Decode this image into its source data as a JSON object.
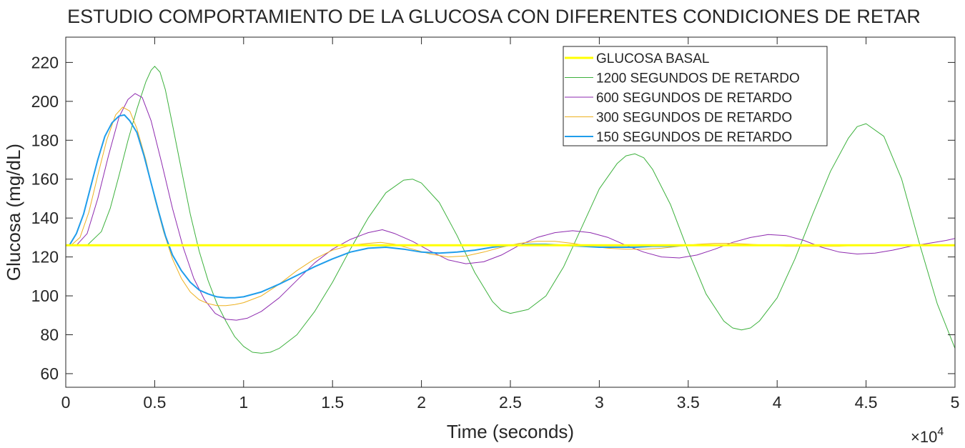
{
  "chart_data": {
    "type": "line",
    "title": "ESTUDIO COMPORTAMIENTO DE LA GLUCOSA CON DIFERENTES CONDICIONES DE RETAR",
    "xlabel": "Time (seconds)",
    "ylabel": "Glucosa (mg/dL)",
    "x_exponent_label": "×10",
    "x_exponent_power": "4",
    "xlim": [
      0,
      50000
    ],
    "ylim": [
      53,
      233
    ],
    "xticks": [
      0,
      5000,
      10000,
      15000,
      20000,
      25000,
      30000,
      35000,
      40000,
      45000,
      50000
    ],
    "xtick_labels": [
      "0",
      "0.5",
      "1",
      "1.5",
      "2",
      "2.5",
      "3",
      "3.5",
      "4",
      "4.5",
      "5"
    ],
    "yticks": [
      60,
      80,
      100,
      120,
      140,
      160,
      180,
      200,
      220
    ],
    "ytick_labels": [
      "60",
      "80",
      "100",
      "120",
      "140",
      "160",
      "180",
      "200",
      "220"
    ],
    "grid": false,
    "legend_position": "top-right",
    "series": [
      {
        "name": "GLUCOSA BASAL",
        "color": "#FFFF00",
        "line_width": "thick",
        "x": [
          0,
          50000
        ],
        "y": [
          126,
          126
        ]
      },
      {
        "name": "1200 SEGUNDOS DE RETARDO",
        "color": "#3CB13C",
        "line_width": "thin",
        "x": [
          0,
          1200,
          2000,
          2500,
          3000,
          3500,
          4000,
          4500,
          4800,
          5000,
          5300,
          5600,
          6000,
          6500,
          7000,
          7500,
          8000,
          8500,
          9000,
          9500,
          10000,
          10500,
          11000,
          11500,
          12000,
          13000,
          14000,
          15000,
          16000,
          17000,
          18000,
          19000,
          19500,
          20000,
          21000,
          22000,
          23000,
          24000,
          24500,
          25000,
          26000,
          27000,
          28000,
          29000,
          30000,
          31000,
          31500,
          32000,
          32500,
          33000,
          34000,
          35000,
          36000,
          37000,
          37500,
          38000,
          38500,
          39000,
          40000,
          41000,
          42000,
          43000,
          44000,
          44500,
          45000,
          46000,
          47000,
          48000,
          49000,
          50000
        ],
        "y": [
          126,
          126,
          133,
          145,
          162,
          180,
          196,
          210,
          216,
          218,
          215,
          206,
          188,
          165,
          142,
          123,
          108,
          96,
          87,
          79,
          74,
          71,
          70.5,
          71,
          73,
          80,
          92,
          107,
          124,
          140,
          153,
          159.5,
          160,
          158,
          148,
          131,
          112,
          97,
          92.5,
          91,
          93,
          100,
          115,
          135,
          155,
          168,
          172,
          173,
          171,
          165,
          147,
          123,
          101,
          87,
          83.5,
          82.5,
          83.5,
          87,
          99,
          119,
          142,
          164,
          181,
          187,
          188.5,
          182,
          160,
          127,
          96,
          73
        ]
      },
      {
        "name": "600 SEGUNDOS DE RETARDO",
        "color": "#8E2AAF",
        "line_width": "thin",
        "x": [
          0,
          600,
          1200,
          1800,
          2400,
          3000,
          3500,
          3900,
          4300,
          4800,
          5400,
          6000,
          6600,
          7200,
          7800,
          8400,
          9000,
          9600,
          10200,
          11000,
          12000,
          13000,
          14000,
          15000,
          16000,
          17000,
          17800,
          18500,
          19500,
          20500,
          21500,
          22500,
          23500,
          24500,
          25500,
          26500,
          27500,
          28500,
          29500,
          30500,
          31500,
          32500,
          33500,
          34500,
          35500,
          36500,
          37500,
          38500,
          39500,
          40500,
          41500,
          42500,
          43500,
          44500,
          45500,
          46500,
          47500,
          48500,
          49500,
          50000
        ],
        "y": [
          126,
          126,
          132,
          150,
          172,
          192,
          201,
          204,
          202,
          190,
          168,
          145,
          125,
          109,
          98,
          91,
          88,
          87.5,
          88.5,
          92,
          99,
          108,
          117,
          124,
          129,
          132.5,
          134,
          132,
          128,
          123,
          118.5,
          116.5,
          117.5,
          121,
          126,
          130,
          132.5,
          133.5,
          132.5,
          130,
          126,
          122.5,
          120,
          119.5,
          121,
          124,
          127.5,
          130,
          131.5,
          131,
          128.5,
          125,
          122.5,
          121.5,
          122,
          123.5,
          125.5,
          127,
          128.5,
          129.5
        ]
      },
      {
        "name": "300 SEGUNDOS DE RETARDO",
        "color": "#EDB120",
        "line_width": "thin",
        "x": [
          0,
          300,
          800,
          1300,
          1800,
          2300,
          2800,
          3200,
          3600,
          4000,
          4500,
          5000,
          5500,
          6000,
          6500,
          7000,
          7500,
          8000,
          8500,
          9000,
          9500,
          10000,
          11000,
          12000,
          13000,
          14000,
          15000,
          16000,
          17000,
          17700,
          18500,
          19500,
          20500,
          21500,
          22500,
          23500,
          24500,
          25500,
          26500,
          27500,
          28500,
          29500,
          30500,
          31500,
          32500,
          33500,
          34500,
          35500,
          36500,
          37500,
          38500,
          39500,
          40500,
          41500,
          42500,
          43500,
          44500,
          45500,
          46500,
          47500,
          48500,
          50000
        ],
        "y": [
          126,
          126,
          130,
          143,
          162,
          180,
          193,
          197,
          195,
          186,
          170,
          150,
          133,
          119,
          109,
          102,
          98,
          96,
          95,
          95,
          95.5,
          96.5,
          100,
          106,
          113,
          119,
          123.5,
          126,
          127,
          127.5,
          126.5,
          124,
          121.5,
          120,
          120.5,
          122.5,
          125,
          127,
          128,
          128,
          127,
          125.5,
          124.5,
          124,
          124,
          124.5,
          125.5,
          126.5,
          127,
          127,
          126.5,
          126,
          125.5,
          125.5,
          125.5,
          125.5,
          126,
          126,
          126,
          126,
          126,
          126
        ]
      },
      {
        "name": "150 SEGUNDOS DE RETARDO",
        "color": "#1F9DEB",
        "line_width": "medium",
        "x": [
          0,
          200,
          600,
          1000,
          1400,
          1800,
          2200,
          2600,
          3000,
          3300,
          3600,
          4000,
          4400,
          4800,
          5200,
          5600,
          6000,
          6500,
          7000,
          7500,
          8000,
          8500,
          9000,
          9500,
          10000,
          11000,
          12000,
          13000,
          14000,
          15000,
          16000,
          17000,
          18000,
          19000,
          20000,
          21000,
          22000,
          23000,
          24000,
          25000,
          26000,
          27000,
          28000,
          29000,
          30000,
          31000,
          32000,
          33000,
          34000,
          35000,
          36000,
          37000,
          38000,
          39000,
          40000,
          42000,
          44000,
          46000,
          48000,
          50000
        ],
        "y": [
          126,
          126,
          132,
          142,
          156,
          170,
          182,
          189,
          192.5,
          193,
          190,
          184,
          172,
          158,
          144,
          131,
          121,
          113,
          107,
          103,
          101,
          99.5,
          99,
          99,
          99.5,
          102,
          106,
          110.5,
          115,
          119,
          122.5,
          124.5,
          125,
          124,
          122.5,
          122,
          122.5,
          123.5,
          125,
          126,
          126.5,
          126.5,
          126,
          125.5,
          125,
          125,
          125,
          125.5,
          125.5,
          126,
          126,
          126,
          126,
          126,
          126,
          126,
          126,
          126,
          126,
          126
        ]
      }
    ]
  }
}
